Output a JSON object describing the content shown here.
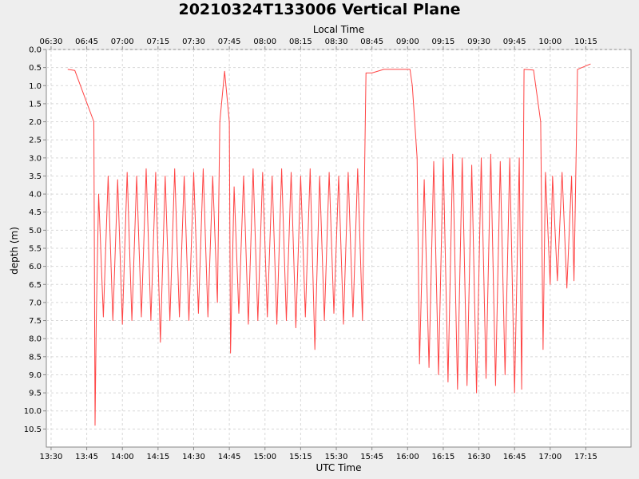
{
  "chart_data": {
    "type": "line",
    "title": "20210324T133006 Vertical Plane",
    "xlabel": "UTC Time",
    "x2label": "Local Time",
    "ylabel": "depth (m)",
    "x_ticks": [
      "13:30",
      "13:45",
      "14:00",
      "14:15",
      "14:30",
      "14:45",
      "15:00",
      "15:15",
      "15:30",
      "15:45",
      "16:00",
      "16:15",
      "16:30",
      "16:45",
      "17:00",
      "17:15"
    ],
    "x2_ticks": [
      "06:30",
      "06:45",
      "07:00",
      "07:15",
      "07:30",
      "07:45",
      "08:00",
      "08:15",
      "08:30",
      "08:45",
      "09:00",
      "09:15",
      "09:30",
      "09:45",
      "10:00",
      "10:15"
    ],
    "xlim": [
      "13:28",
      "17:34"
    ],
    "ylim": [
      0.0,
      11.0
    ],
    "y_inverted": true,
    "y_ticks": [
      "0.0",
      "0.5",
      "1.0",
      "1.5",
      "2.0",
      "2.5",
      "3.0",
      "3.5",
      "4.0",
      "4.5",
      "5.0",
      "5.5",
      "6.0",
      "6.5",
      "7.0",
      "7.5",
      "8.0",
      "8.5",
      "9.0",
      "9.5",
      "10.0",
      "10.5"
    ],
    "grid": true,
    "line_color": "#ff4444",
    "series": [
      {
        "name": "",
        "points": [
          {
            "t": "13:37",
            "d": 0.55
          },
          {
            "t": "13:40",
            "d": 0.58
          },
          {
            "t": "13:48",
            "d": 2.0
          },
          {
            "t": "13:48.5",
            "d": 10.4
          },
          {
            "t": "13:49",
            "d": 7.5
          },
          {
            "t": "13:50",
            "d": 4.0
          },
          {
            "t": "13:52",
            "d": 7.4
          },
          {
            "t": "13:54",
            "d": 3.5
          },
          {
            "t": "13:56",
            "d": 7.5
          },
          {
            "t": "13:58",
            "d": 3.6
          },
          {
            "t": "14:00",
            "d": 7.6
          },
          {
            "t": "14:02",
            "d": 3.4
          },
          {
            "t": "14:04",
            "d": 7.5
          },
          {
            "t": "14:06",
            "d": 3.5
          },
          {
            "t": "14:08",
            "d": 7.4
          },
          {
            "t": "14:10",
            "d": 3.3
          },
          {
            "t": "14:12",
            "d": 7.5
          },
          {
            "t": "14:14",
            "d": 3.4
          },
          {
            "t": "14:16",
            "d": 8.1
          },
          {
            "t": "14:18",
            "d": 3.5
          },
          {
            "t": "14:20",
            "d": 7.5
          },
          {
            "t": "14:22",
            "d": 3.3
          },
          {
            "t": "14:24",
            "d": 7.4
          },
          {
            "t": "14:26",
            "d": 3.5
          },
          {
            "t": "14:28",
            "d": 7.5
          },
          {
            "t": "14:30",
            "d": 3.4
          },
          {
            "t": "14:32",
            "d": 7.3
          },
          {
            "t": "14:34",
            "d": 3.3
          },
          {
            "t": "14:36",
            "d": 7.4
          },
          {
            "t": "14:38",
            "d": 3.5
          },
          {
            "t": "14:40",
            "d": 7.0
          },
          {
            "t": "14:41",
            "d": 2.0
          },
          {
            "t": "14:43",
            "d": 0.6
          },
          {
            "t": "14:45",
            "d": 2.0
          },
          {
            "t": "14:45.5",
            "d": 8.4
          },
          {
            "t": "14:47",
            "d": 3.8
          },
          {
            "t": "14:49",
            "d": 7.3
          },
          {
            "t": "14:51",
            "d": 3.5
          },
          {
            "t": "14:53",
            "d": 7.6
          },
          {
            "t": "14:55",
            "d": 3.3
          },
          {
            "t": "14:57",
            "d": 7.5
          },
          {
            "t": "14:59",
            "d": 3.4
          },
          {
            "t": "15:01",
            "d": 7.4
          },
          {
            "t": "15:03",
            "d": 3.5
          },
          {
            "t": "15:05",
            "d": 7.6
          },
          {
            "t": "15:07",
            "d": 3.3
          },
          {
            "t": "15:09",
            "d": 7.5
          },
          {
            "t": "15:11",
            "d": 3.4
          },
          {
            "t": "15:13",
            "d": 7.7
          },
          {
            "t": "15:15",
            "d": 3.5
          },
          {
            "t": "15:17",
            "d": 7.4
          },
          {
            "t": "15:19",
            "d": 3.3
          },
          {
            "t": "15:21",
            "d": 8.3
          },
          {
            "t": "15:23",
            "d": 3.5
          },
          {
            "t": "15:25",
            "d": 7.5
          },
          {
            "t": "15:27",
            "d": 3.4
          },
          {
            "t": "15:29",
            "d": 7.3
          },
          {
            "t": "15:31",
            "d": 3.5
          },
          {
            "t": "15:33",
            "d": 7.6
          },
          {
            "t": "15:35",
            "d": 3.4
          },
          {
            "t": "15:37",
            "d": 7.4
          },
          {
            "t": "15:39",
            "d": 3.3
          },
          {
            "t": "15:41",
            "d": 7.5
          },
          {
            "t": "15:42.5",
            "d": 0.65
          },
          {
            "t": "15:45",
            "d": 0.65
          },
          {
            "t": "15:50",
            "d": 0.55
          },
          {
            "t": "16:01",
            "d": 0.55
          },
          {
            "t": "16:02",
            "d": 1.0
          },
          {
            "t": "16:04",
            "d": 3.0
          },
          {
            "t": "16:05",
            "d": 8.7
          },
          {
            "t": "16:07",
            "d": 3.6
          },
          {
            "t": "16:09",
            "d": 8.8
          },
          {
            "t": "16:11",
            "d": 3.1
          },
          {
            "t": "16:13",
            "d": 9.0
          },
          {
            "t": "16:15",
            "d": 3.0
          },
          {
            "t": "16:17",
            "d": 9.2
          },
          {
            "t": "16:19",
            "d": 2.9
          },
          {
            "t": "16:21",
            "d": 9.4
          },
          {
            "t": "16:23",
            "d": 3.0
          },
          {
            "t": "16:25",
            "d": 9.3
          },
          {
            "t": "16:27",
            "d": 3.2
          },
          {
            "t": "16:29",
            "d": 9.5
          },
          {
            "t": "16:31",
            "d": 3.0
          },
          {
            "t": "16:33",
            "d": 9.1
          },
          {
            "t": "16:35",
            "d": 2.9
          },
          {
            "t": "16:37",
            "d": 9.3
          },
          {
            "t": "16:39",
            "d": 3.1
          },
          {
            "t": "16:41",
            "d": 9.0
          },
          {
            "t": "16:43",
            "d": 3.0
          },
          {
            "t": "16:45",
            "d": 9.5
          },
          {
            "t": "16:47",
            "d": 3.0
          },
          {
            "t": "16:48",
            "d": 9.4
          },
          {
            "t": "16:49",
            "d": 0.55
          },
          {
            "t": "16:53",
            "d": 0.57
          },
          {
            "t": "16:56",
            "d": 2.0
          },
          {
            "t": "16:57",
            "d": 8.3
          },
          {
            "t": "16:58",
            "d": 3.4
          },
          {
            "t": "17:00",
            "d": 6.5
          },
          {
            "t": "17:01",
            "d": 3.5
          },
          {
            "t": "17:03",
            "d": 6.4
          },
          {
            "t": "17:05",
            "d": 3.4
          },
          {
            "t": "17:07",
            "d": 6.6
          },
          {
            "t": "17:09",
            "d": 3.5
          },
          {
            "t": "17:10",
            "d": 6.4
          },
          {
            "t": "17:11",
            "d": 2.5
          },
          {
            "t": "17:11.5",
            "d": 0.55
          },
          {
            "t": "17:17",
            "d": 0.4
          }
        ]
      }
    ]
  }
}
